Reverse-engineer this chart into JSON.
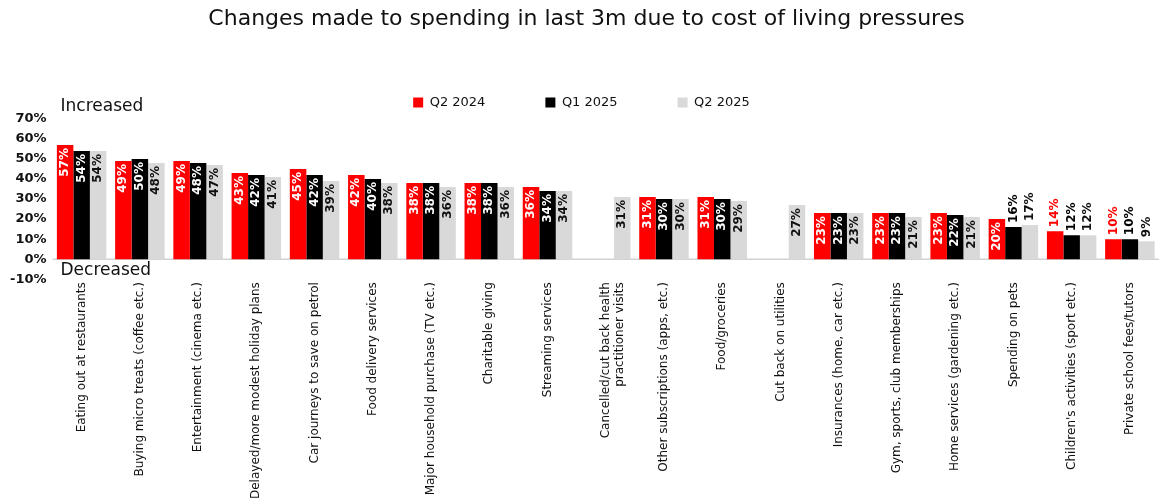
{
  "chart_data": {
    "type": "bar",
    "title": "Changes made to spending in last 3m due to cost of living pressures",
    "categories": [
      "Eating out at restaurants",
      "Buying micro treats (coffee etc.)",
      "Entertainment (cinema etc.)",
      "Delayed/more modest holiday plans",
      "Car journeys to save on petrol",
      "Food delivery services",
      "Major household purchase (TV etc.)",
      "Charitable giving",
      "Streaming services",
      "Cancelled/cut back health practitioner visits",
      "Other subscriptions (apps, etc.)",
      "Food/groceries",
      "Cut back on utilities",
      "Insurances (home, car etc.)",
      "Gym, sports, club memberships",
      "Home services (gardening etc.)",
      "Spending on pets",
      "Children's activities (sport etc.)",
      "Private school fees/tutors"
    ],
    "series": [
      {
        "name": "Q2 2024",
        "color": "#ff0000",
        "values": [
          57,
          49,
          49,
          43,
          45,
          42,
          38,
          38,
          36,
          null,
          31,
          31,
          null,
          23,
          23,
          23,
          20,
          14,
          10
        ],
        "value_labels": [
          "57%",
          "49%",
          "49%",
          "43%",
          "45%",
          "42%",
          "38%",
          "38%",
          "36%",
          null,
          "31%",
          "31%",
          null,
          "23%",
          "23%",
          "23%",
          "20%",
          "14%",
          "10%"
        ]
      },
      {
        "name": "Q1 2025",
        "color": "#000000",
        "values": [
          54,
          50,
          48,
          42,
          42,
          40,
          38,
          38,
          34,
          null,
          30,
          30,
          null,
          23,
          23,
          22,
          16,
          12,
          10
        ],
        "value_labels": [
          "54%",
          "50%",
          "48%",
          "42%",
          "42%",
          "40%",
          "38%",
          "38%",
          "34%",
          null,
          "30%",
          "30%",
          null,
          "23%",
          "23%",
          "22%",
          "16%",
          "12%",
          "10%"
        ]
      },
      {
        "name": "Q2 2025",
        "color": "#d9d9d9",
        "values": [
          54,
          48,
          47,
          41,
          39,
          38,
          36,
          36,
          34,
          31,
          30,
          29,
          27,
          23,
          21,
          21,
          17,
          12,
          9
        ],
        "value_labels": [
          "54%",
          "48%",
          "47%",
          "41%",
          "39%",
          "38%",
          "36%",
          "36%",
          "34%",
          "31%",
          "30%",
          "29%",
          "27%",
          "23%",
          "21%",
          "21%",
          "17%",
          "12%",
          "9%"
        ]
      }
    ],
    "ylim": [
      -10,
      70
    ],
    "yticks": [
      {
        "value": -10,
        "label": "-10%"
      },
      {
        "value": 0,
        "label": "0%"
      },
      {
        "value": 10,
        "label": "10%"
      },
      {
        "value": 20,
        "label": "20%"
      },
      {
        "value": 30,
        "label": "30%"
      },
      {
        "value": 40,
        "label": "40%"
      },
      {
        "value": 50,
        "label": "50%"
      },
      {
        "value": 60,
        "label": "60%"
      },
      {
        "value": 70,
        "label": "70%"
      }
    ],
    "annotations": [
      "Increased",
      "Decreased"
    ],
    "legend": "top",
    "grid": false
  }
}
